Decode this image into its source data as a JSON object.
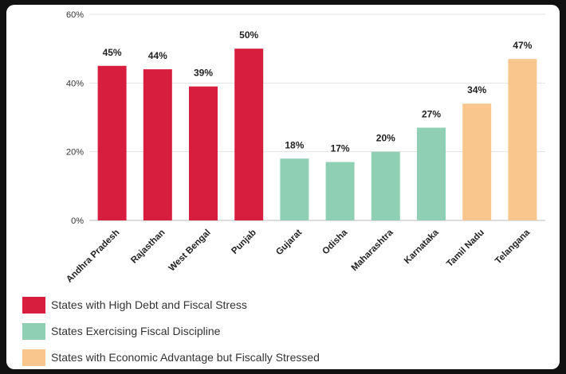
{
  "chart_data": {
    "type": "bar",
    "categories": [
      "Andhra Pradesh",
      "Rajasthan",
      "West Bengal",
      "Punjab",
      "Gujarat",
      "Odisha",
      "Maharashtra",
      "Karnataka",
      "Tamil Nadu",
      "Telangana"
    ],
    "values": [
      45,
      44,
      39,
      50,
      18,
      17,
      20,
      27,
      34,
      47
    ],
    "data_labels": [
      "45%",
      "44%",
      "39%",
      "50%",
      "18%",
      "17%",
      "20%",
      "27%",
      "34%",
      "47%"
    ],
    "groups": [
      0,
      0,
      0,
      0,
      1,
      1,
      1,
      1,
      2,
      2
    ],
    "ylim": [
      0,
      60
    ],
    "yticks": [
      0,
      20,
      40,
      60
    ],
    "ytick_labels": [
      "0%",
      "20%",
      "40%",
      "60%"
    ],
    "grid": true,
    "legend_position": "bottom-left",
    "series": [
      {
        "name": "States with High Debt and Fiscal Stress",
        "color": "#d81e3f"
      },
      {
        "name": "States Exercising Fiscal Discipline",
        "color": "#8fd0b4"
      },
      {
        "name": "States with Economic Advantage but Fiscally Stressed",
        "color": "#f9c78e"
      }
    ]
  }
}
